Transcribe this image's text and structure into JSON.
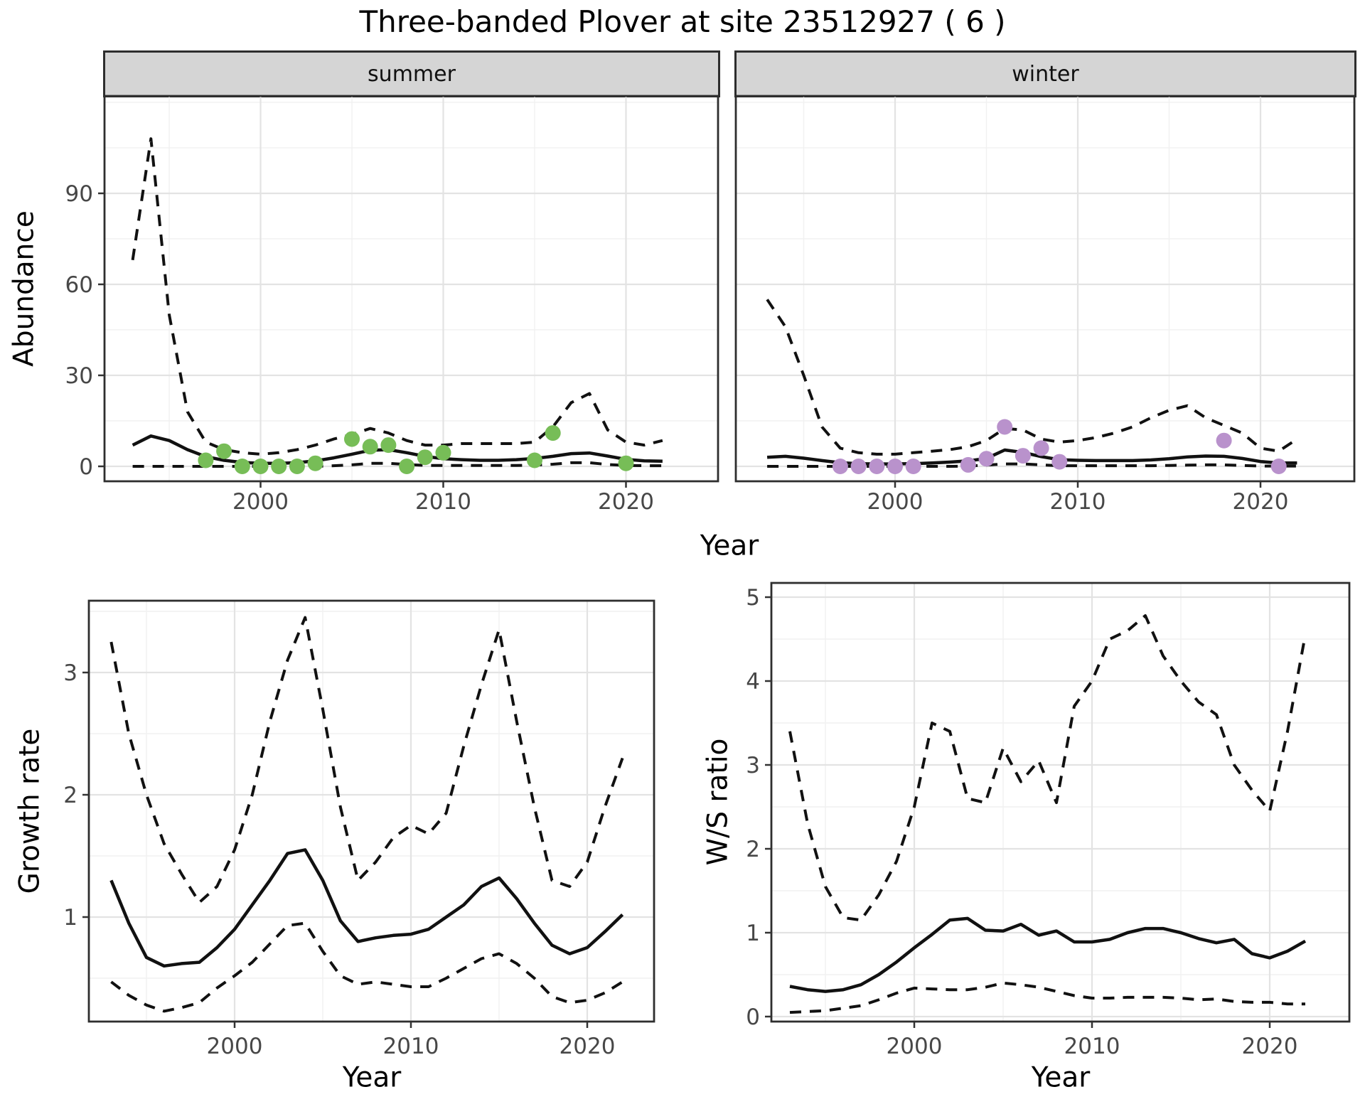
{
  "title": "Three-banded Plover at site 23512927 ( 6 )",
  "colors": {
    "observed_summer": "#77bd57",
    "observed_winter": "#b992cc",
    "line": "#111111",
    "grid_major": "#e3e3e3",
    "grid_minor": "#f1f1f1",
    "panel_border": "#2e2e2e",
    "tick_mark": "#333333",
    "strip_bg": "#d5d5d5",
    "axis_text": "#474747"
  },
  "chart_data": [
    {
      "id": "abundance-summer",
      "type": "line+scatter",
      "facet_label": "summer",
      "xlabel": "Year",
      "ylabel": "Abundance",
      "x": [
        1993,
        1994,
        1995,
        1996,
        1997,
        1998,
        1999,
        2000,
        2001,
        2002,
        2003,
        2004,
        2005,
        2006,
        2007,
        2008,
        2009,
        2010,
        2011,
        2012,
        2013,
        2014,
        2015,
        2016,
        2017,
        2018,
        2019,
        2020,
        2021,
        2022
      ],
      "series": [
        {
          "name": "fit",
          "style": "solid",
          "values": [
            7,
            10,
            8.5,
            5.5,
            3.2,
            2,
            1.3,
            1,
            1,
            1.2,
            1.8,
            2.8,
            4,
            5.3,
            5.5,
            4.5,
            3.3,
            2.5,
            2.2,
            2,
            2,
            2.2,
            2.6,
            3.3,
            4.2,
            4.4,
            3.4,
            2.3,
            1.8,
            1.7
          ]
        },
        {
          "name": "upper_ci",
          "style": "dashed",
          "values": [
            68,
            108,
            50,
            18,
            8,
            5.5,
            4.5,
            4,
            4.5,
            5.5,
            7,
            9,
            10.5,
            12.5,
            11,
            8.5,
            7,
            7,
            7.5,
            7.5,
            7.5,
            7.5,
            8,
            13,
            21,
            24,
            12,
            8,
            7,
            8.5
          ]
        },
        {
          "name": "lower_ci",
          "style": "dashed",
          "values": [
            0,
            0,
            0,
            0,
            0,
            0,
            0,
            0,
            0,
            0,
            0,
            0.2,
            0.5,
            1,
            1,
            0.6,
            0.3,
            0.3,
            0.3,
            0.3,
            0.3,
            0.3,
            0.4,
            0.7,
            1.2,
            1.2,
            0.6,
            0.3,
            0.2,
            0.2
          ]
        }
      ],
      "points": {
        "name": "observed",
        "x": [
          1997,
          1998,
          1999,
          2000,
          2001,
          2002,
          2003,
          2005,
          2006,
          2007,
          2008,
          2009,
          2010,
          2015,
          2016,
          2020
        ],
        "y": [
          2,
          5,
          0,
          0,
          0,
          0,
          1,
          9,
          6.5,
          7,
          0,
          3,
          4.5,
          2,
          11,
          1
        ]
      },
      "xlim": [
        1991.5,
        2025.0
      ],
      "ylim": [
        -5,
        122
      ],
      "xticks": [
        2000,
        2010,
        2020
      ],
      "yticks": [
        0,
        30,
        60,
        90
      ],
      "minor_xticks": [
        1995,
        2005,
        2015
      ],
      "minor_yticks": [
        15,
        45,
        75,
        105,
        120
      ],
      "grid": true,
      "legend": "none"
    },
    {
      "id": "abundance-winter",
      "type": "line+scatter",
      "facet_label": "winter",
      "xlabel": "Year",
      "ylabel": "Abundance",
      "x": [
        1993,
        1994,
        1995,
        1996,
        1997,
        1998,
        1999,
        2000,
        2001,
        2002,
        2003,
        2004,
        2005,
        2006,
        2007,
        2008,
        2009,
        2010,
        2011,
        2012,
        2013,
        2014,
        2015,
        2016,
        2017,
        2018,
        2019,
        2020,
        2021,
        2022
      ],
      "series": [
        {
          "name": "fit",
          "style": "solid",
          "values": [
            3,
            3.3,
            2.7,
            1.9,
            1.2,
            0.9,
            0.8,
            0.8,
            0.9,
            1.1,
            1.4,
            1.8,
            2.6,
            5.4,
            4.6,
            3.2,
            2.2,
            2,
            1.9,
            1.9,
            1.9,
            2.1,
            2.5,
            3.1,
            3.4,
            3.3,
            2.6,
            1.6,
            1.1,
            1.1
          ]
        },
        {
          "name": "upper_ci",
          "style": "dashed",
          "values": [
            55,
            46,
            30,
            13,
            6,
            4.5,
            4,
            4,
            4.5,
            5,
            5.5,
            6.5,
            8.5,
            12.5,
            12,
            9,
            8,
            8.5,
            9.5,
            11,
            13,
            16,
            18.5,
            20,
            16,
            13.5,
            11,
            6,
            5,
            9
          ]
        },
        {
          "name": "lower_ci",
          "style": "dashed",
          "values": [
            0,
            0,
            0,
            0,
            0,
            0,
            0,
            0,
            0,
            0,
            0,
            0.1,
            0.4,
            0.8,
            0.8,
            0.5,
            0.2,
            0.2,
            0.2,
            0.2,
            0.2,
            0.2,
            0.3,
            0.4,
            0.5,
            0.5,
            0.3,
            0.1,
            0.1,
            0.1
          ]
        }
      ],
      "points": {
        "name": "observed",
        "x": [
          1997,
          1998,
          1999,
          2000,
          2001,
          2004,
          2005,
          2006,
          2007,
          2008,
          2009,
          2018,
          2021
        ],
        "y": [
          0,
          0,
          0,
          0,
          0,
          0.5,
          2.5,
          13,
          3.5,
          6,
          1.5,
          8.5,
          0
        ]
      },
      "xlim": [
        1991.3,
        2025.2
      ],
      "ylim": [
        -5,
        122
      ],
      "xticks": [
        2000,
        2010,
        2020
      ],
      "yticks": [
        0,
        30,
        60,
        90
      ],
      "minor_xticks": [
        1995,
        2005,
        2015
      ],
      "minor_yticks": [
        15,
        45,
        75,
        105,
        120
      ],
      "grid": true,
      "legend": "none"
    },
    {
      "id": "growth-rate",
      "type": "line",
      "facet_label": "",
      "xlabel": "Year",
      "ylabel": "Growth rate",
      "x": [
        1993,
        1994,
        1995,
        1996,
        1997,
        1998,
        1999,
        2000,
        2001,
        2002,
        2003,
        2004,
        2005,
        2006,
        2007,
        2008,
        2009,
        2010,
        2011,
        2012,
        2013,
        2014,
        2015,
        2016,
        2017,
        2018,
        2019,
        2020,
        2021,
        2022
      ],
      "series": [
        {
          "name": "median",
          "style": "solid",
          "values": [
            1.3,
            0.95,
            0.67,
            0.6,
            0.62,
            0.63,
            0.75,
            0.9,
            1.1,
            1.3,
            1.52,
            1.55,
            1.3,
            0.97,
            0.8,
            0.83,
            0.85,
            0.86,
            0.9,
            1,
            1.1,
            1.25,
            1.32,
            1.15,
            0.95,
            0.77,
            0.7,
            0.75,
            0.88,
            1.02
          ]
        },
        {
          "name": "upper_ci",
          "style": "dashed",
          "values": [
            3.25,
            2.5,
            2,
            1.6,
            1.35,
            1.12,
            1.25,
            1.55,
            2,
            2.6,
            3.1,
            3.45,
            2.7,
            1.9,
            1.3,
            1.45,
            1.65,
            1.75,
            1.68,
            1.85,
            2.4,
            2.9,
            3.35,
            2.6,
            1.9,
            1.3,
            1.25,
            1.45,
            1.9,
            2.3
          ]
        },
        {
          "name": "lower_ci",
          "style": "dashed",
          "values": [
            0.47,
            0.36,
            0.28,
            0.23,
            0.26,
            0.3,
            0.42,
            0.52,
            0.63,
            0.78,
            0.93,
            0.95,
            0.72,
            0.52,
            0.45,
            0.47,
            0.45,
            0.43,
            0.43,
            0.5,
            0.58,
            0.66,
            0.7,
            0.62,
            0.5,
            0.35,
            0.3,
            0.32,
            0.38,
            0.47
          ]
        }
      ],
      "xlim": [
        1991.7,
        2023.8
      ],
      "ylim": [
        0.15,
        3.59
      ],
      "xticks": [
        2000,
        2010,
        2020
      ],
      "yticks": [
        1,
        2,
        3
      ],
      "minor_xticks": [
        1995,
        2005,
        2015
      ],
      "minor_yticks": [
        0.5,
        1.5,
        2.5,
        3.5
      ],
      "grid": true,
      "legend": "none"
    },
    {
      "id": "ws-ratio",
      "type": "line",
      "facet_label": "",
      "xlabel": "Year",
      "ylabel": "W/S ratio",
      "x": [
        1993,
        1994,
        1995,
        1996,
        1997,
        1998,
        1999,
        2000,
        2001,
        2002,
        2003,
        2004,
        2005,
        2006,
        2007,
        2008,
        2009,
        2010,
        2011,
        2012,
        2013,
        2014,
        2015,
        2016,
        2017,
        2018,
        2019,
        2020,
        2021,
        2022
      ],
      "series": [
        {
          "name": "median",
          "style": "solid",
          "values": [
            0.36,
            0.32,
            0.3,
            0.32,
            0.38,
            0.5,
            0.65,
            0.82,
            0.98,
            1.15,
            1.17,
            1.03,
            1.02,
            1.1,
            0.97,
            1.02,
            0.89,
            0.89,
            0.92,
            1,
            1.05,
            1.05,
            1,
            0.93,
            0.88,
            0.92,
            0.75,
            0.7,
            0.78,
            0.9
          ]
        },
        {
          "name": "upper_ci",
          "style": "dashed",
          "values": [
            3.4,
            2.3,
            1.55,
            1.18,
            1.15,
            1.45,
            1.85,
            2.5,
            3.5,
            3.4,
            2.6,
            2.55,
            3.2,
            2.8,
            3.05,
            2.55,
            3.7,
            4,
            4.5,
            4.6,
            4.78,
            4.3,
            4,
            3.75,
            3.6,
            3,
            2.7,
            2.45,
            3.4,
            4.55
          ]
        },
        {
          "name": "lower_ci",
          "style": "dashed",
          "values": [
            0.05,
            0.06,
            0.07,
            0.1,
            0.13,
            0.2,
            0.28,
            0.34,
            0.33,
            0.32,
            0.32,
            0.35,
            0.4,
            0.38,
            0.35,
            0.3,
            0.25,
            0.22,
            0.22,
            0.23,
            0.23,
            0.23,
            0.22,
            0.2,
            0.21,
            0.18,
            0.17,
            0.17,
            0.15,
            0.15
          ]
        }
      ],
      "xlim": [
        1992.0,
        2024.5
      ],
      "ylim": [
        -0.06,
        5.17
      ],
      "xticks": [
        2000,
        2010,
        2020
      ],
      "yticks": [
        0,
        1,
        2,
        3,
        4,
        5
      ],
      "minor_xticks": [
        1995,
        2005,
        2015
      ],
      "minor_yticks": [
        0.5,
        1.5,
        2.5,
        3.5,
        4.5
      ],
      "grid": true,
      "legend": "none"
    }
  ]
}
